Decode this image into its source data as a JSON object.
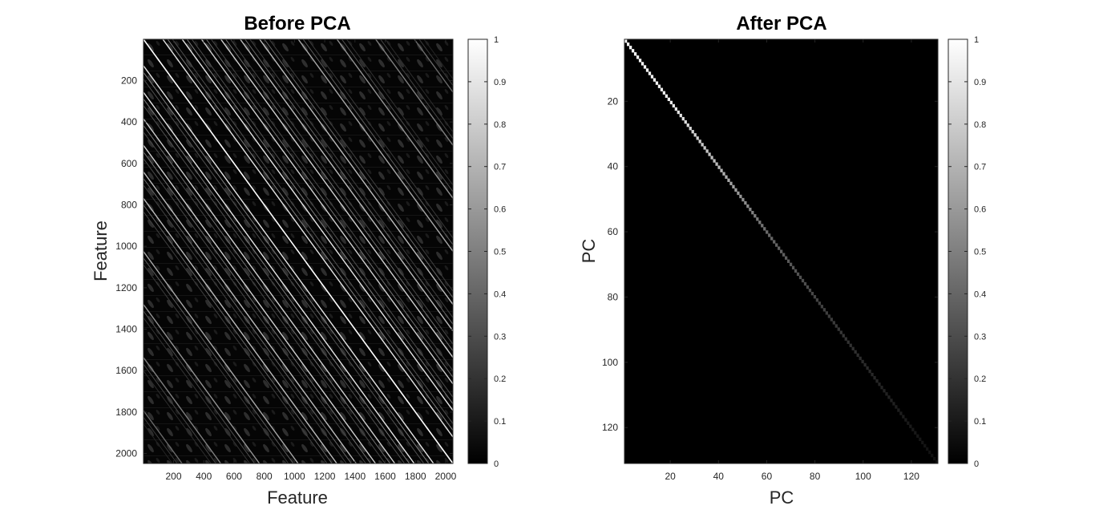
{
  "chart_data": [
    {
      "type": "heatmap",
      "title": "Before PCA",
      "xlabel": "Feature",
      "ylabel": "Feature",
      "xlim": [
        1,
        2048
      ],
      "ylim": [
        1,
        2048
      ],
      "y_reversed": true,
      "xticks": [
        200,
        400,
        600,
        800,
        1000,
        1200,
        1400,
        1600,
        1800,
        2000
      ],
      "yticks": [
        200,
        400,
        600,
        800,
        1000,
        1200,
        1400,
        1600,
        1800,
        2000
      ],
      "colormap": "gray",
      "clim": [
        0,
        1
      ],
      "colorbar_ticks": [
        0,
        0.1,
        0.2,
        0.3,
        0.4,
        0.5,
        0.6,
        0.7,
        0.8,
        0.9,
        1
      ],
      "pattern": "correlation matrix of 2048 features: bright main diagonal plus many bright parallel off-diagonal stripes and a repeating block texture",
      "diagonal_offsets": [
        256,
        512,
        768,
        1024,
        1280,
        1536,
        1792,
        128,
        384,
        640
      ],
      "main_diagonal": 1,
      "offdiagonal_max": 0.9
    },
    {
      "type": "heatmap",
      "title": "After PCA",
      "xlabel": "PC",
      "ylabel": "PC",
      "xlim": [
        1,
        131
      ],
      "ylim": [
        1,
        131
      ],
      "y_reversed": true,
      "xticks": [
        20,
        40,
        60,
        80,
        100,
        120
      ],
      "yticks": [
        20,
        40,
        60,
        80,
        100,
        120
      ],
      "colormap": "gray",
      "clim": [
        0,
        1
      ],
      "colorbar_ticks": [
        0,
        0.1,
        0.2,
        0.3,
        0.4,
        0.5,
        0.6,
        0.7,
        0.8,
        0.9,
        1
      ],
      "pattern": "diagonal only, off-diagonal values 0",
      "n_components": 131,
      "diagonal_values_sampled": {
        "pc": [
          1,
          20,
          40,
          60,
          80,
          100,
          120,
          131
        ],
        "value": [
          1.0,
          0.93,
          0.72,
          0.42,
          0.27,
          0.17,
          0.1,
          0.06
        ]
      }
    }
  ]
}
